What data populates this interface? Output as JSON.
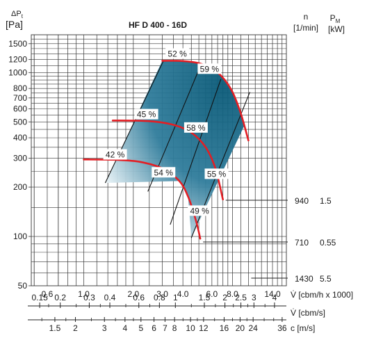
{
  "chart_data": {
    "type": "line",
    "title": "HF D 400 - 16D",
    "y_axis": {
      "label_line1": "ΔP",
      "label_sub": "t",
      "label_unit": "[Pa]",
      "scale": "log",
      "range": [
        50,
        1700
      ],
      "ticks": [
        {
          "value": 50,
          "label": "50"
        },
        {
          "value": 100,
          "label": "100"
        },
        {
          "value": 200,
          "label": "200"
        },
        {
          "value": 300,
          "label": "300"
        },
        {
          "value": 400,
          "label": "400"
        },
        {
          "value": 500,
          "label": "500"
        },
        {
          "value": 600,
          "label": "600"
        },
        {
          "value": 700,
          "label": "700"
        },
        {
          "value": 800,
          "label": "800"
        },
        {
          "value": 1000,
          "label": "1000"
        },
        {
          "value": 1200,
          "label": "1200"
        },
        {
          "value": 1500,
          "label": "1500"
        }
      ]
    },
    "x_axis_flow": {
      "label": "V̇ [cbm/h x 1000]",
      "scale": "log",
      "range": [
        0.48,
        17.0
      ],
      "ticks": [
        {
          "value": 0.6,
          "label": "0.6"
        },
        {
          "value": 1.0,
          "label": "1.0"
        },
        {
          "value": 2.0,
          "label": "2.0"
        },
        {
          "value": 3.0,
          "label": "3.0"
        },
        {
          "value": 4.0,
          "label": "4.0"
        },
        {
          "value": 6.0,
          "label": "6.0"
        },
        {
          "value": 8.0,
          "label": "8.0"
        },
        {
          "value": 14.0,
          "label": "14.0"
        }
      ]
    },
    "x_axis_flow_s": {
      "label": "V̇ [cbm/s]",
      "ticks": [
        {
          "value": 0.15,
          "label": "0.15"
        },
        {
          "value": 0.2,
          "label": "0.2"
        },
        {
          "value": 0.3,
          "label": "0.3"
        },
        {
          "value": 0.4,
          "label": "0.4"
        },
        {
          "value": 0.6,
          "label": "0.6"
        },
        {
          "value": 0.8,
          "label": "0.8"
        },
        {
          "value": 1.0,
          "label": "1"
        },
        {
          "value": 1.5,
          "label": "1.5"
        },
        {
          "value": 2.0,
          "label": "2"
        },
        {
          "value": 2.5,
          "label": "2.5"
        },
        {
          "value": 3.0,
          "label": "3"
        },
        {
          "value": 4.0,
          "label": "4"
        }
      ]
    },
    "x_axis_velocity": {
      "label": "c [m/s]",
      "ticks": [
        {
          "value": 1.5,
          "label": "1.5"
        },
        {
          "value": 2,
          "label": "2"
        },
        {
          "value": 3,
          "label": "3"
        },
        {
          "value": 4,
          "label": "4"
        },
        {
          "value": 5,
          "label": "5"
        },
        {
          "value": 6,
          "label": "6"
        },
        {
          "value": 7,
          "label": "7"
        },
        {
          "value": 8,
          "label": "8"
        },
        {
          "value": 10,
          "label": "10"
        },
        {
          "value": 12,
          "label": "12"
        },
        {
          "value": 16,
          "label": "16"
        },
        {
          "value": 20,
          "label": "20"
        },
        {
          "value": 24,
          "label": "24"
        },
        {
          "value": 36,
          "label": "36"
        }
      ]
    },
    "right_headers": {
      "n_label": "n",
      "n_unit": "[1/min]",
      "p_label": "P",
      "p_sub": "M",
      "p_unit": "[kW]"
    },
    "series": [
      {
        "speed": "1430",
        "power": "5.5",
        "points": [
          [
            3.0,
            1180
          ],
          [
            4.0,
            1175
          ],
          [
            5.0,
            1140
          ],
          [
            6.0,
            1060
          ],
          [
            7.0,
            930
          ],
          [
            8.0,
            760
          ],
          [
            9.0,
            560
          ],
          [
            10.0,
            385
          ]
        ]
      },
      {
        "speed": "940",
        "power": "1.5",
        "points": [
          [
            1.5,
            510
          ],
          [
            2.5,
            505
          ],
          [
            3.5,
            480
          ],
          [
            4.5,
            430
          ],
          [
            5.5,
            350
          ],
          [
            6.3,
            260
          ],
          [
            7.0,
            168
          ]
        ]
      },
      {
        "speed": "710",
        "power": "0.55",
        "points": [
          [
            1.0,
            295
          ],
          [
            1.6,
            293
          ],
          [
            2.2,
            285
          ],
          [
            3.0,
            260
          ],
          [
            3.8,
            218
          ],
          [
            4.3,
            175
          ],
          [
            4.8,
            125
          ],
          [
            5.1,
            97
          ]
        ]
      }
    ],
    "efficiency_lines": [
      {
        "label": "42 %",
        "points": [
          [
            1.35,
            212
          ],
          [
            3.05,
            1180
          ]
        ]
      },
      {
        "label": "45 %",
        "points": [
          [
            2.45,
            188
          ],
          [
            5.0,
            1040
          ]
        ]
      },
      {
        "label": "54 %",
        "points": [
          [
            3.35,
            118
          ],
          [
            6.8,
            910
          ]
        ]
      },
      {
        "label": "58 %",
        "points": [
          [
            4.5,
            98
          ],
          [
            10.2,
            760
          ]
        ]
      }
    ],
    "efficiency_labels": [
      {
        "text": "52 %",
        "x": 3.7,
        "y": 1300
      },
      {
        "text": "59 %",
        "x": 5.8,
        "y": 1050
      },
      {
        "text": "45 %",
        "x": 2.4,
        "y": 555
      },
      {
        "text": "58 %",
        "x": 4.8,
        "y": 460
      },
      {
        "text": "42 %",
        "x": 1.55,
        "y": 315
      },
      {
        "text": "54 %",
        "x": 3.05,
        "y": 245
      },
      {
        "text": "55 %",
        "x": 6.4,
        "y": 240
      },
      {
        "text": "49 %",
        "x": 5.05,
        "y": 143
      }
    ],
    "grid": true
  }
}
